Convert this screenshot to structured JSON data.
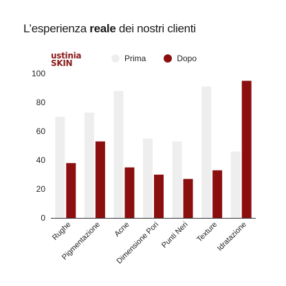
{
  "title": {
    "prefix": "L’esperienza ",
    "bold": "reale",
    "suffix": " dei nostri clienti"
  },
  "logo": {
    "line1": "ustinia",
    "line2": "skin"
  },
  "colors": {
    "prima": "#eeeeee",
    "dopo": "#8b0f0f"
  },
  "chart_data": {
    "type": "bar",
    "categories": [
      "Rughe",
      "Pigmentazione",
      "Acne",
      "Dimensione Pori",
      "Punti Neri",
      "Texture",
      "Idratazione"
    ],
    "series": [
      {
        "name": "Prima",
        "values": [
          70,
          73,
          88,
          55,
          53,
          91,
          46
        ]
      },
      {
        "name": "Dopo",
        "values": [
          38,
          53,
          35,
          30,
          27,
          33,
          95
        ]
      }
    ],
    "yticks": [
      0,
      20,
      40,
      60,
      80,
      100
    ],
    "ylim": [
      0,
      100
    ],
    "grid": false,
    "legend_position": "top"
  }
}
